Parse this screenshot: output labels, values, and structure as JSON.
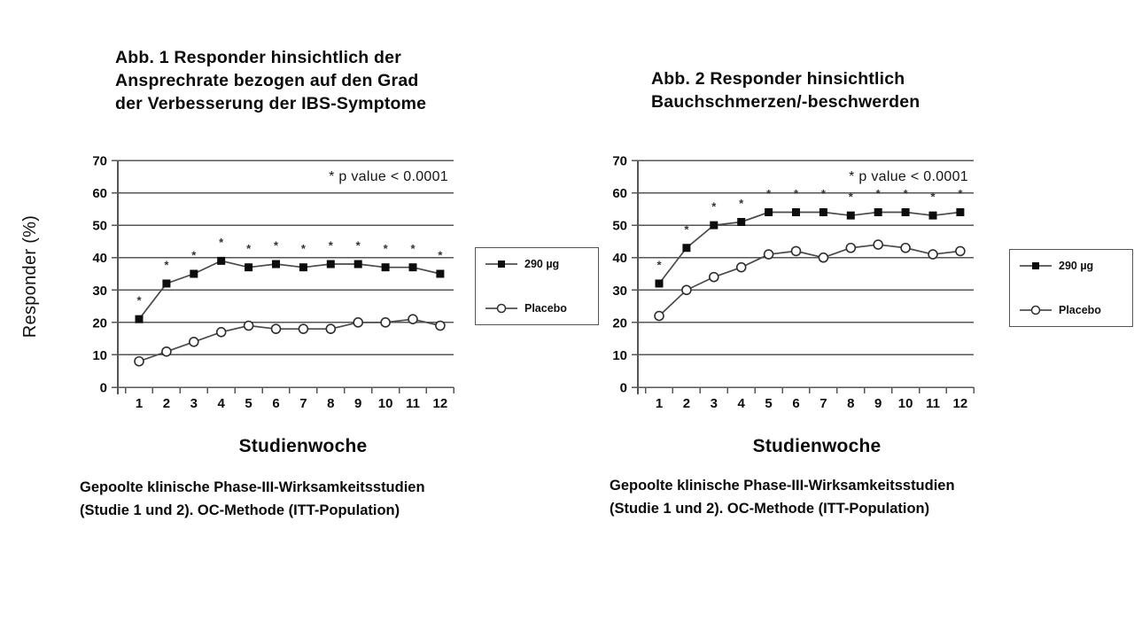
{
  "colors": {
    "background": "#ffffff",
    "text": "#0b0b0b",
    "grid_line": "#565656",
    "series_line": "#4a4a4a",
    "filled_marker": "#0d0d0d",
    "open_marker_stroke": "#2f2f2f"
  },
  "chart_data": [
    {
      "type": "line",
      "title": "Abb. 1 Responder hinsichtlich der\nAnsprechrate bezogen auf den Grad\nder Verbesserung der IBS-Symptome",
      "xlabel": "Studienwoche",
      "ylabel": "Responder (%)",
      "ylim": [
        0,
        70
      ],
      "yticks": [
        0,
        10,
        20,
        30,
        40,
        50,
        60,
        70
      ],
      "x": [
        1,
        2,
        3,
        4,
        5,
        6,
        7,
        8,
        9,
        10,
        11,
        12
      ],
      "grid": true,
      "legend_position": "right",
      "annotation": "* p value < 0.0001",
      "series": [
        {
          "name": "290 µg",
          "marker": "filled-square",
          "values": [
            21,
            32,
            35,
            39,
            37,
            38,
            37,
            38,
            38,
            37,
            37,
            35
          ],
          "significant": [
            true,
            true,
            true,
            true,
            true,
            true,
            true,
            true,
            true,
            true,
            true,
            true
          ]
        },
        {
          "name": "Placebo",
          "marker": "open-circle",
          "values": [
            8,
            11,
            14,
            17,
            19,
            18,
            18,
            18,
            20,
            20,
            21,
            19
          ]
        }
      ],
      "caption": "Gepoolte klinische Phase-III-Wirksamkeitsstudien\n(Studie 1 und 2). OC-Methode (ITT-Population)"
    },
    {
      "type": "line",
      "title": "Abb. 2 Responder hinsichtlich\nBauchschmerzen/-beschwerden",
      "xlabel": "Studienwoche",
      "ylabel": "",
      "ylim": [
        0,
        70
      ],
      "yticks": [
        0,
        10,
        20,
        30,
        40,
        50,
        60,
        70
      ],
      "x": [
        1,
        2,
        3,
        4,
        5,
        6,
        7,
        8,
        9,
        10,
        11,
        12
      ],
      "grid": true,
      "legend_position": "right",
      "annotation": "* p value < 0.0001",
      "series": [
        {
          "name": "290 µg",
          "marker": "filled-square",
          "values": [
            32,
            43,
            50,
            51,
            54,
            54,
            54,
            53,
            54,
            54,
            53,
            54
          ],
          "significant": [
            true,
            true,
            true,
            true,
            true,
            true,
            true,
            true,
            true,
            true,
            true,
            true
          ]
        },
        {
          "name": "Placebo",
          "marker": "open-circle",
          "values": [
            22,
            30,
            34,
            37,
            41,
            42,
            40,
            43,
            44,
            43,
            41,
            42
          ]
        }
      ],
      "caption": "Gepoolte klinische Phase-III-Wirksamkeitsstudien\n(Studie 1 und 2). OC-Methode (ITT-Population)"
    }
  ]
}
